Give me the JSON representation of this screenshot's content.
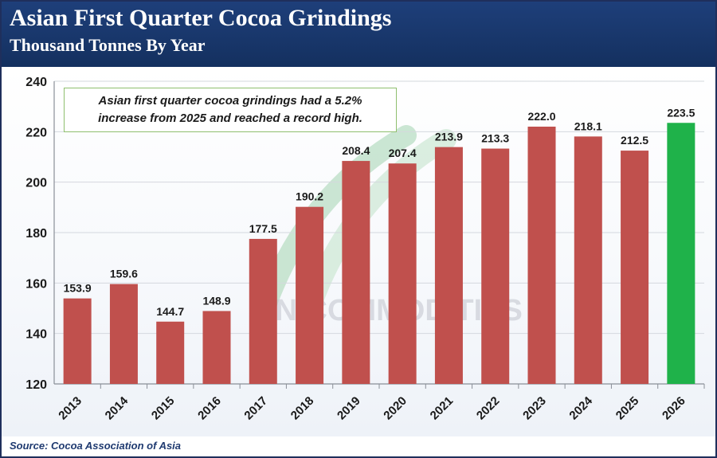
{
  "header": {
    "title": "Asian First Quarter Cocoa Grindings",
    "subtitle": "Thousand Tonnes By Year"
  },
  "annotation": "Asian first quarter cocoa grindings had a 5.2% increase from 2025 and reached a record high.",
  "watermark": "VN COMMODITIES",
  "source": "Source: Cocoa Association of Asia",
  "colors": {
    "bar": "#c0504d",
    "highlight_bar": "#1fb24a",
    "header_bg": "#1a3a73"
  },
  "chart_data": {
    "type": "bar",
    "title": "Asian First Quarter Cocoa Grindings",
    "subtitle": "Thousand Tonnes By Year",
    "xlabel": "",
    "ylabel": "",
    "categories": [
      "2013",
      "2014",
      "2015",
      "2016",
      "2017",
      "2018",
      "2019",
      "2020",
      "2021",
      "2022",
      "2023",
      "2024",
      "2025",
      "2026"
    ],
    "values": [
      153.9,
      159.6,
      144.7,
      148.9,
      177.5,
      190.2,
      208.4,
      207.4,
      213.9,
      213.3,
      222.0,
      218.1,
      212.5,
      223.5
    ],
    "value_labels": [
      "153.9",
      "159.6",
      "144.7",
      "148.9",
      "177.5",
      "190.2",
      "208.4",
      "207.4",
      "213.9",
      "213.3",
      "222.0",
      "218.1",
      "212.5",
      "223.5"
    ],
    "highlight_category": "2026",
    "ylim": [
      120,
      240
    ],
    "yticks": [
      120,
      140,
      160,
      180,
      200,
      220,
      240
    ],
    "grid": true,
    "legend": "none"
  }
}
